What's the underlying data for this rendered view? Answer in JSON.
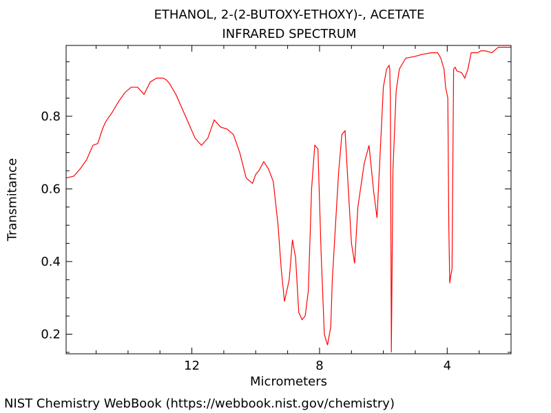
{
  "chart_data": {
    "type": "line",
    "title": "ETHANOL, 2-(2-BUTOXY-ETHOXY)-, ACETATE",
    "subtitle": "INFRARED SPECTRUM",
    "xlabel": "Micrometers",
    "ylabel": "Transmitance",
    "xlim": [
      15.94,
      2.0
    ],
    "ylim": [
      0.146,
      0.995
    ],
    "x_ticks": [
      12,
      8,
      4
    ],
    "y_ticks": [
      0.2,
      0.4,
      0.6,
      0.8
    ],
    "line_color": "#ff0000",
    "grid": false,
    "series": [
      {
        "x": [
          15.94,
          15.7,
          15.5,
          15.3,
          15.1,
          14.95,
          14.8,
          14.7,
          14.5,
          14.3,
          14.1,
          13.9,
          13.7,
          13.5,
          13.3,
          13.1,
          12.9,
          12.8,
          12.7,
          12.5,
          12.3,
          12.1,
          11.9,
          11.7,
          11.5,
          11.3,
          11.1,
          10.9,
          10.7,
          10.5,
          10.3,
          10.1,
          10.0,
          9.9,
          9.75,
          9.6,
          9.45,
          9.3,
          9.2,
          9.1,
          8.95,
          8.85,
          8.75,
          8.65,
          8.55,
          8.45,
          8.35,
          8.25,
          8.15,
          8.05,
          7.95,
          7.85,
          7.75,
          7.65,
          7.6,
          7.5,
          7.4,
          7.3,
          7.2,
          7.1,
          7.0,
          6.9,
          6.8,
          6.6,
          6.45,
          6.3,
          6.2,
          6.1,
          6.0,
          5.9,
          5.82,
          5.8,
          5.78,
          5.75,
          5.7,
          5.6,
          5.5,
          5.3,
          5.0,
          4.8,
          4.5,
          4.3,
          4.2,
          4.1,
          4.05,
          3.98,
          3.95,
          3.92,
          3.89,
          3.85,
          3.8,
          3.75,
          3.7,
          3.55,
          3.45,
          3.35,
          3.25,
          3.05,
          2.95,
          2.8,
          2.6,
          2.4,
          2.2,
          2.0
        ],
        "y": [
          0.63,
          0.635,
          0.655,
          0.68,
          0.72,
          0.725,
          0.765,
          0.785,
          0.81,
          0.84,
          0.865,
          0.88,
          0.88,
          0.86,
          0.895,
          0.905,
          0.905,
          0.9,
          0.89,
          0.86,
          0.82,
          0.78,
          0.74,
          0.72,
          0.74,
          0.79,
          0.77,
          0.765,
          0.75,
          0.7,
          0.63,
          0.615,
          0.64,
          0.65,
          0.675,
          0.655,
          0.62,
          0.5,
          0.38,
          0.29,
          0.35,
          0.46,
          0.41,
          0.26,
          0.24,
          0.25,
          0.32,
          0.6,
          0.72,
          0.71,
          0.42,
          0.2,
          0.17,
          0.22,
          0.35,
          0.5,
          0.65,
          0.75,
          0.76,
          0.6,
          0.45,
          0.395,
          0.55,
          0.67,
          0.72,
          0.59,
          0.52,
          0.7,
          0.88,
          0.93,
          0.94,
          0.93,
          0.85,
          0.15,
          0.65,
          0.87,
          0.93,
          0.96,
          0.965,
          0.97,
          0.975,
          0.975,
          0.96,
          0.93,
          0.88,
          0.85,
          0.5,
          0.34,
          0.36,
          0.38,
          0.93,
          0.935,
          0.925,
          0.92,
          0.905,
          0.93,
          0.975,
          0.975,
          0.98,
          0.98,
          0.975,
          0.99,
          0.99,
          0.99
        ]
      }
    ]
  },
  "footer": {
    "credit": "NIST Chemistry WebBook (https://webbook.nist.gov/chemistry)"
  }
}
